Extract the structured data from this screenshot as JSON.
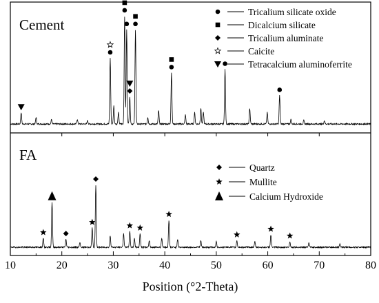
{
  "chart_data": {
    "type": "line",
    "xlabel": "Position (°2-Theta)",
    "xlim": [
      10,
      80
    ],
    "xticks": [
      10,
      20,
      30,
      40,
      50,
      60,
      70,
      80
    ],
    "grid": false,
    "panels": [
      {
        "title": "Cement",
        "legend_position": "top-right",
        "legend": [
          {
            "marker": "circle",
            "label": "Tricalium silicate oxide"
          },
          {
            "marker": "square",
            "label": "Dicalcium silicate"
          },
          {
            "marker": "diamond",
            "label": "Tricalium aluminate"
          },
          {
            "marker": "star-open",
            "label": "Caicite"
          },
          {
            "marker": "triangle-down",
            "label": "Tetracalcium aluminoferrite"
          }
        ],
        "peaks": [
          {
            "x": 12.1,
            "height": 0.1,
            "markers": [
              "triangle-down"
            ]
          },
          {
            "x": 15.0,
            "height": 0.06,
            "markers": []
          },
          {
            "x": 18.0,
            "height": 0.04,
            "markers": []
          },
          {
            "x": 23.0,
            "height": 0.04,
            "markers": []
          },
          {
            "x": 25.0,
            "height": 0.03,
            "markers": []
          },
          {
            "x": 29.4,
            "height": 0.58,
            "markers": [
              "circle",
              "star-open"
            ]
          },
          {
            "x": 30.1,
            "height": 0.16,
            "markers": []
          },
          {
            "x": 31.0,
            "height": 0.1,
            "markers": []
          },
          {
            "x": 32.2,
            "height": 0.95,
            "markers": [
              "circle",
              "square"
            ]
          },
          {
            "x": 32.6,
            "height": 0.83,
            "markers": [
              "circle"
            ]
          },
          {
            "x": 33.2,
            "height": 0.24,
            "markers": [
              "diamond",
              "triangle-down"
            ]
          },
          {
            "x": 34.3,
            "height": 0.83,
            "markers": [
              "circle",
              "square"
            ]
          },
          {
            "x": 36.7,
            "height": 0.06,
            "markers": []
          },
          {
            "x": 38.8,
            "height": 0.12,
            "markers": []
          },
          {
            "x": 41.3,
            "height": 0.45,
            "markers": [
              "circle",
              "square"
            ]
          },
          {
            "x": 44.0,
            "height": 0.08,
            "markers": []
          },
          {
            "x": 45.8,
            "height": 0.1,
            "markers": []
          },
          {
            "x": 47.0,
            "height": 0.14,
            "markers": []
          },
          {
            "x": 47.5,
            "height": 0.1,
            "markers": []
          },
          {
            "x": 51.7,
            "height": 0.48,
            "markers": [
              "circle"
            ]
          },
          {
            "x": 56.5,
            "height": 0.14,
            "markers": []
          },
          {
            "x": 59.9,
            "height": 0.1,
            "markers": []
          },
          {
            "x": 62.3,
            "height": 0.25,
            "markers": [
              "circle"
            ]
          },
          {
            "x": 64.5,
            "height": 0.04,
            "markers": []
          },
          {
            "x": 67.0,
            "height": 0.03,
            "markers": []
          },
          {
            "x": 71.0,
            "height": 0.03,
            "markers": []
          }
        ]
      },
      {
        "title": "FA",
        "legend_position": "top-right",
        "legend": [
          {
            "marker": "diamond",
            "label": "Quartz"
          },
          {
            "marker": "star",
            "label": "Mullite"
          },
          {
            "marker": "triangle-up",
            "label": "Calcium Hydroxide"
          }
        ],
        "peaks": [
          {
            "x": 16.4,
            "height": 0.08,
            "markers": [
              "star"
            ]
          },
          {
            "x": 18.1,
            "height": 0.4,
            "markers": [
              "triangle-up"
            ]
          },
          {
            "x": 20.8,
            "height": 0.07,
            "markers": [
              "diamond"
            ]
          },
          {
            "x": 23.5,
            "height": 0.04,
            "markers": []
          },
          {
            "x": 25.9,
            "height": 0.17,
            "markers": [
              "star"
            ]
          },
          {
            "x": 26.6,
            "height": 0.55,
            "markers": [
              "diamond"
            ]
          },
          {
            "x": 29.4,
            "height": 0.1,
            "markers": []
          },
          {
            "x": 32.0,
            "height": 0.12,
            "markers": []
          },
          {
            "x": 33.2,
            "height": 0.14,
            "markers": [
              "star"
            ]
          },
          {
            "x": 34.1,
            "height": 0.08,
            "markers": []
          },
          {
            "x": 35.2,
            "height": 0.12,
            "markers": [
              "star"
            ]
          },
          {
            "x": 37.0,
            "height": 0.06,
            "markers": []
          },
          {
            "x": 39.4,
            "height": 0.08,
            "markers": []
          },
          {
            "x": 40.8,
            "height": 0.24,
            "markers": [
              "star"
            ]
          },
          {
            "x": 42.5,
            "height": 0.07,
            "markers": []
          },
          {
            "x": 47.0,
            "height": 0.06,
            "markers": []
          },
          {
            "x": 50.0,
            "height": 0.05,
            "markers": []
          },
          {
            "x": 54.0,
            "height": 0.06,
            "markers": [
              "star"
            ]
          },
          {
            "x": 57.5,
            "height": 0.05,
            "markers": []
          },
          {
            "x": 60.6,
            "height": 0.11,
            "markers": [
              "star"
            ]
          },
          {
            "x": 64.3,
            "height": 0.05,
            "markers": [
              "star"
            ]
          },
          {
            "x": 68.0,
            "height": 0.04,
            "markers": []
          },
          {
            "x": 74.0,
            "height": 0.03,
            "markers": []
          }
        ]
      }
    ]
  }
}
